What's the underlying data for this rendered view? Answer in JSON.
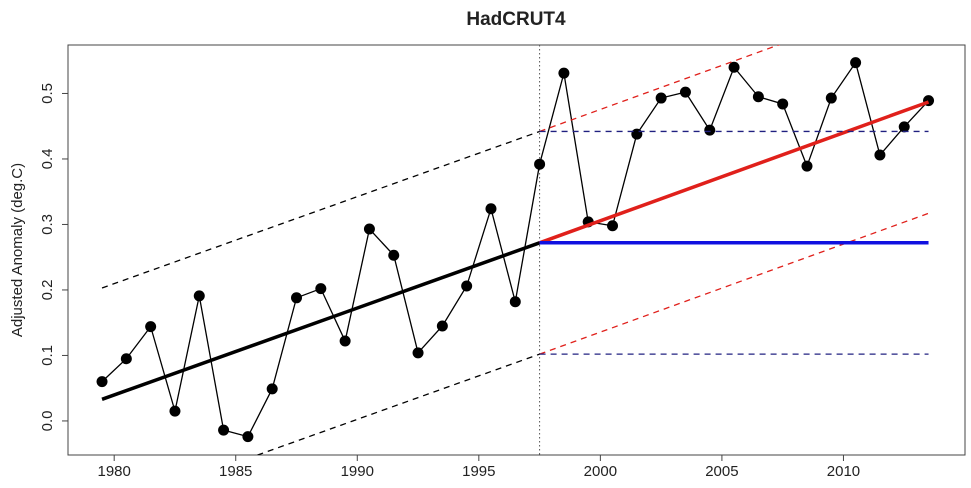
{
  "chart_data": {
    "type": "line",
    "title": "HadCRUT4",
    "ylabel": "Adjusted Anomaly (deg.C)",
    "xlim": [
      1978.1,
      2015.0
    ],
    "ylim": [
      -0.052,
      0.574
    ],
    "xticks": [
      1980,
      1985,
      1990,
      1995,
      2000,
      2005,
      2010
    ],
    "yticks": [
      {
        "value": 0,
        "label": "0.0"
      },
      0.1,
      0.2,
      0.3,
      0.4,
      0.5
    ],
    "vline": 1997.5,
    "series": [
      {
        "color": "#000000",
        "style": "solid",
        "width": 1.3,
        "markers": true,
        "x": [
          1979.5,
          1980.5,
          1981.5,
          1982.5,
          1983.5,
          1984.5,
          1985.5,
          1986.5,
          1987.5,
          1988.5,
          1989.5,
          1990.5,
          1991.5,
          1992.5,
          1993.5,
          1994.5,
          1995.5,
          1996.5,
          1997.5,
          1998.5,
          1999.5,
          2000.5,
          2001.5,
          2002.5,
          2003.5,
          2004.5,
          2005.5,
          2006.5,
          2007.5,
          2008.5,
          2009.5,
          2010.5,
          2011.5,
          2012.5,
          2013.5
        ],
        "values": [
          0.06,
          0.095,
          0.144,
          0.015,
          0.191,
          -0.014,
          -0.024,
          0.049,
          0.188,
          0.202,
          0.122,
          0.293,
          0.253,
          0.104,
          0.145,
          0.206,
          0.324,
          0.182,
          0.392,
          0.531,
          0.304,
          0.298,
          0.438,
          0.493,
          0.502,
          0.444,
          0.54,
          0.495,
          0.484,
          0.389,
          0.493,
          0.547,
          0.406,
          0.449,
          0.489
        ]
      },
      {
        "color": "#000000",
        "style": "solid",
        "width": 3.5,
        "x": [
          1979.5,
          1997.5
        ],
        "values": [
          0.033,
          0.272
        ]
      },
      {
        "color": "#000000",
        "style": "dashed",
        "width": 1.3,
        "x": [
          1979.5,
          1997.5
        ],
        "values": [
          0.203,
          0.442
        ]
      },
      {
        "color": "#000000",
        "style": "dashed",
        "width": 1.3,
        "x": [
          1979.5,
          1997.5
        ],
        "values": [
          -0.137,
          0.102
        ]
      },
      {
        "color": "#e0201b",
        "style": "solid",
        "width": 3.5,
        "x": [
          1997.5,
          2013.5
        ],
        "values": [
          0.272,
          0.487
        ]
      },
      {
        "color": "#e0201b",
        "style": "dashed",
        "width": 1.3,
        "x": [
          1997.5,
          2013.5
        ],
        "values": [
          0.442,
          0.657
        ]
      },
      {
        "color": "#e0201b",
        "style": "dashed",
        "width": 1.3,
        "x": [
          1997.5,
          2013.5
        ],
        "values": [
          0.102,
          0.317
        ]
      },
      {
        "color": "#1010e0",
        "style": "solid",
        "width": 3.5,
        "x": [
          1997.5,
          2013.5
        ],
        "values": [
          0.272,
          0.272
        ]
      },
      {
        "color": "#202080",
        "style": "dashed",
        "width": 1.3,
        "x": [
          1997.5,
          2013.5
        ],
        "values": [
          0.442,
          0.442
        ]
      },
      {
        "color": "#202080",
        "style": "dashed",
        "width": 1.3,
        "x": [
          1997.5,
          2013.5
        ],
        "values": [
          0.102,
          0.102
        ]
      }
    ]
  }
}
